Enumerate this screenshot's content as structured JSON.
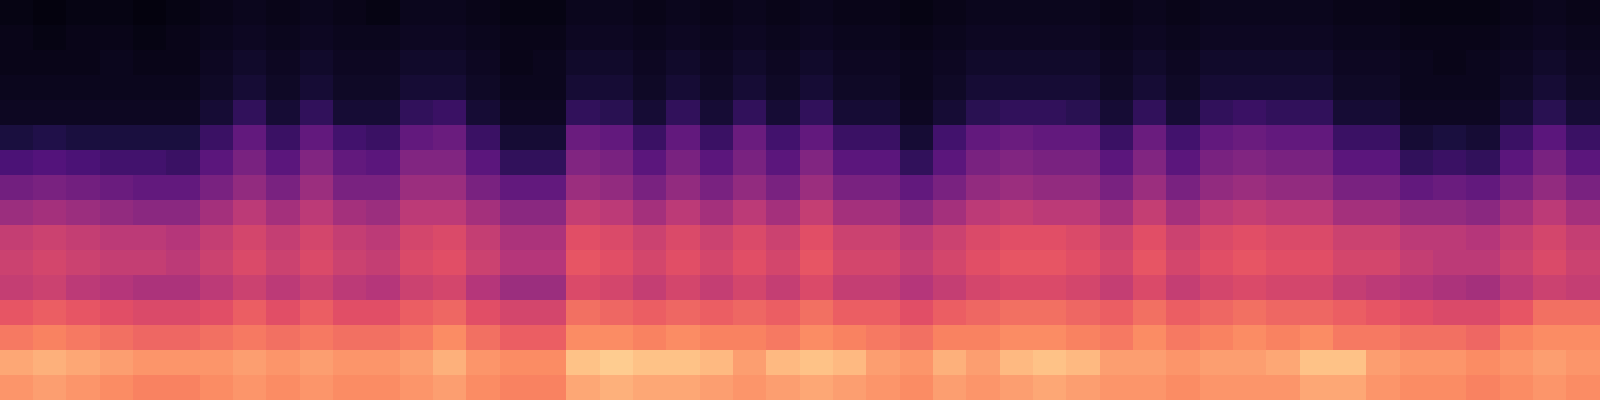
{
  "chart_data": {
    "type": "heatmap",
    "color": "magma",
    "tick_labels": false,
    "grid": false,
    "zlim": [
      0,
      100
    ],
    "cells": [
      [
        3,
        2,
        3,
        3,
        2,
        3,
        4,
        5,
        4,
        5,
        4,
        3,
        5,
        5,
        4,
        3,
        3,
        5,
        5,
        4,
        5,
        4,
        5,
        4,
        5,
        4,
        4,
        3,
        4,
        5,
        5,
        5,
        5,
        4,
        5,
        4,
        5,
        5,
        5,
        5,
        4,
        4,
        3,
        3,
        3,
        4,
        5,
        4
      ],
      [
        4,
        3,
        4,
        4,
        3,
        4,
        5,
        6,
        5,
        6,
        5,
        5,
        6,
        6,
        5,
        4,
        4,
        6,
        6,
        5,
        6,
        5,
        6,
        5,
        6,
        5,
        5,
        4,
        5,
        6,
        6,
        6,
        6,
        5,
        6,
        5,
        6,
        6,
        6,
        6,
        5,
        5,
        4,
        4,
        4,
        5,
        6,
        5
      ],
      [
        4,
        4,
        4,
        5,
        4,
        4,
        6,
        8,
        6,
        8,
        6,
        6,
        8,
        8,
        6,
        4,
        5,
        8,
        8,
        6,
        8,
        6,
        8,
        6,
        8,
        6,
        6,
        5,
        6,
        8,
        8,
        8,
        8,
        6,
        8,
        6,
        8,
        8,
        8,
        8,
        6,
        6,
        5,
        4,
        5,
        6,
        8,
        6
      ],
      [
        5,
        5,
        5,
        5,
        5,
        5,
        7,
        10,
        7,
        10,
        7,
        7,
        10,
        10,
        7,
        5,
        5,
        10,
        10,
        7,
        10,
        7,
        10,
        7,
        10,
        7,
        7,
        5,
        7,
        10,
        10,
        10,
        10,
        7,
        10,
        7,
        10,
        10,
        10,
        10,
        7,
        7,
        5,
        5,
        5,
        7,
        10,
        7
      ],
      [
        6,
        6,
        6,
        6,
        6,
        6,
        10,
        18,
        10,
        18,
        10,
        10,
        18,
        20,
        10,
        6,
        6,
        18,
        16,
        10,
        18,
        10,
        18,
        10,
        18,
        10,
        10,
        6,
        10,
        16,
        18,
        18,
        16,
        10,
        18,
        10,
        18,
        20,
        18,
        18,
        10,
        10,
        6,
        6,
        6,
        10,
        16,
        10
      ],
      [
        12,
        14,
        12,
        12,
        12,
        12,
        20,
        30,
        20,
        30,
        22,
        20,
        30,
        32,
        20,
        10,
        10,
        32,
        30,
        20,
        30,
        20,
        32,
        22,
        30,
        20,
        20,
        10,
        22,
        30,
        32,
        30,
        30,
        20,
        32,
        22,
        30,
        32,
        30,
        30,
        20,
        20,
        10,
        12,
        10,
        20,
        28,
        20
      ],
      [
        24,
        26,
        24,
        22,
        22,
        20,
        28,
        36,
        28,
        38,
        30,
        28,
        38,
        38,
        28,
        18,
        18,
        38,
        36,
        28,
        36,
        28,
        36,
        28,
        38,
        28,
        28,
        18,
        28,
        36,
        38,
        36,
        36,
        28,
        38,
        28,
        36,
        38,
        36,
        36,
        28,
        28,
        18,
        20,
        18,
        28,
        36,
        28
      ],
      [
        34,
        36,
        34,
        32,
        30,
        30,
        36,
        42,
        36,
        44,
        36,
        36,
        44,
        44,
        36,
        30,
        30,
        44,
        42,
        36,
        42,
        36,
        42,
        36,
        44,
        36,
        36,
        30,
        36,
        42,
        44,
        42,
        42,
        36,
        44,
        36,
        42,
        44,
        42,
        42,
        36,
        36,
        30,
        32,
        30,
        36,
        42,
        36
      ],
      [
        44,
        46,
        44,
        42,
        40,
        40,
        46,
        52,
        46,
        52,
        46,
        44,
        52,
        52,
        46,
        40,
        40,
        54,
        52,
        46,
        52,
        46,
        52,
        46,
        54,
        46,
        46,
        40,
        46,
        52,
        54,
        52,
        52,
        46,
        54,
        46,
        52,
        54,
        52,
        52,
        46,
        46,
        42,
        42,
        40,
        46,
        52,
        46
      ],
      [
        54,
        56,
        54,
        52,
        52,
        50,
        54,
        58,
        54,
        58,
        54,
        52,
        58,
        60,
        54,
        48,
        48,
        62,
        60,
        56,
        60,
        56,
        60,
        56,
        62,
        56,
        56,
        52,
        56,
        60,
        62,
        62,
        60,
        56,
        62,
        56,
        60,
        62,
        60,
        60,
        56,
        56,
        52,
        52,
        50,
        54,
        58,
        54
      ],
      [
        56,
        58,
        56,
        54,
        54,
        52,
        56,
        60,
        56,
        60,
        56,
        54,
        60,
        62,
        56,
        50,
        50,
        64,
        62,
        58,
        62,
        58,
        62,
        58,
        64,
        58,
        58,
        54,
        58,
        62,
        64,
        64,
        62,
        58,
        64,
        58,
        62,
        64,
        62,
        62,
        58,
        58,
        54,
        52,
        52,
        56,
        60,
        56
      ],
      [
        54,
        56,
        52,
        50,
        48,
        48,
        52,
        56,
        52,
        56,
        52,
        50,
        56,
        58,
        50,
        44,
        44,
        60,
        58,
        54,
        58,
        54,
        58,
        54,
        60,
        54,
        54,
        50,
        54,
        58,
        60,
        60,
        58,
        54,
        60,
        54,
        58,
        60,
        58,
        58,
        54,
        52,
        50,
        48,
        46,
        52,
        56,
        54
      ],
      [
        64,
        66,
        64,
        62,
        60,
        60,
        62,
        66,
        62,
        66,
        62,
        62,
        66,
        68,
        62,
        58,
        58,
        70,
        68,
        66,
        68,
        66,
        68,
        66,
        70,
        66,
        66,
        62,
        66,
        68,
        70,
        70,
        68,
        66,
        70,
        66,
        68,
        70,
        68,
        68,
        66,
        64,
        62,
        60,
        60,
        64,
        70,
        70
      ],
      [
        72,
        74,
        72,
        70,
        68,
        68,
        70,
        72,
        70,
        72,
        70,
        70,
        72,
        76,
        70,
        66,
        66,
        76,
        76,
        74,
        76,
        74,
        74,
        72,
        76,
        74,
        72,
        70,
        74,
        74,
        76,
        76,
        74,
        72,
        76,
        72,
        74,
        76,
        74,
        76,
        72,
        72,
        70,
        70,
        68,
        74,
        76,
        76
      ],
      [
        82,
        84,
        82,
        80,
        78,
        78,
        78,
        80,
        78,
        80,
        78,
        78,
        80,
        84,
        78,
        76,
        76,
        88,
        90,
        88,
        88,
        86,
        80,
        86,
        88,
        86,
        80,
        78,
        84,
        80,
        86,
        88,
        86,
        80,
        80,
        78,
        80,
        80,
        82,
        88,
        88,
        80,
        78,
        78,
        76,
        78,
        80,
        78
      ],
      [
        78,
        80,
        78,
        76,
        74,
        74,
        76,
        78,
        76,
        78,
        76,
        76,
        78,
        80,
        76,
        74,
        74,
        82,
        84,
        82,
        82,
        80,
        78,
        80,
        82,
        80,
        78,
        76,
        80,
        78,
        80,
        82,
        80,
        78,
        78,
        76,
        78,
        78,
        78,
        82,
        82,
        78,
        76,
        76,
        74,
        76,
        78,
        76
      ]
    ]
  }
}
